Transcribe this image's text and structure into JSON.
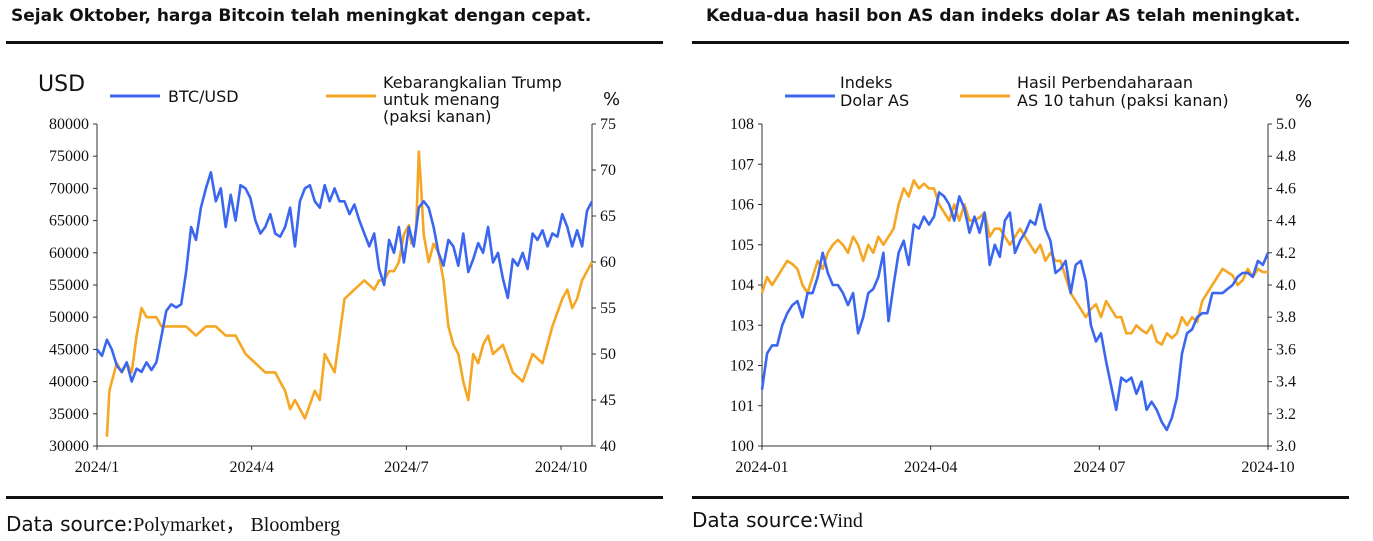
{
  "left": {
    "title": "Sejak Oktober, harga Bitcoin telah meningkat dengan cepat.",
    "source_label": "Data source:",
    "source_value": "Polymarket， Bloomberg"
  },
  "right": {
    "title": "Kedua-dua hasil bon AS dan indeks dolar AS telah meningkat.",
    "source_label": "Data source:",
    "source_value": "Wind"
  },
  "chart_data": [
    {
      "type": "line",
      "unit_left": "USD",
      "unit_right": "%",
      "ylim": [
        30000,
        80000
      ],
      "y2lim": [
        40,
        75
      ],
      "yticks": [
        "80000",
        "75000",
        "70000",
        "65000",
        "60000",
        "55000",
        "50000",
        "45000",
        "40000",
        "35000",
        "30000"
      ],
      "y2ticks": [
        "75",
        "70",
        "65",
        "60",
        "55",
        "50",
        "45",
        "40"
      ],
      "xticks": [
        "2024/1",
        "2024/4",
        "2024/7",
        "2024/10"
      ],
      "xtick_pos": [
        0,
        0.3125,
        0.625,
        0.9375
      ],
      "colors": {
        "btc": "#3a66f0",
        "trump": "#f5a623"
      },
      "series": [
        {
          "name": "BTC/USD",
          "axis": "left",
          "x": [
            0,
            0.01,
            0.02,
            0.03,
            0.04,
            0.05,
            0.06,
            0.07,
            0.08,
            0.09,
            0.1,
            0.11,
            0.12,
            0.13,
            0.14,
            0.15,
            0.16,
            0.17,
            0.18,
            0.19,
            0.2,
            0.21,
            0.22,
            0.23,
            0.24,
            0.25,
            0.26,
            0.27,
            0.28,
            0.29,
            0.3,
            0.31,
            0.32,
            0.33,
            0.34,
            0.35,
            0.36,
            0.37,
            0.38,
            0.39,
            0.4,
            0.41,
            0.42,
            0.43,
            0.44,
            0.45,
            0.46,
            0.47,
            0.48,
            0.49,
            0.5,
            0.51,
            0.52,
            0.53,
            0.54,
            0.55,
            0.56,
            0.57,
            0.58,
            0.59,
            0.6,
            0.61,
            0.62,
            0.63,
            0.64,
            0.65,
            0.66,
            0.67,
            0.68,
            0.69,
            0.7,
            0.71,
            0.72,
            0.73,
            0.74,
            0.75,
            0.76,
            0.77,
            0.78,
            0.79,
            0.8,
            0.81,
            0.82,
            0.83,
            0.84,
            0.85,
            0.86,
            0.87,
            0.88,
            0.89,
            0.9,
            0.91,
            0.92,
            0.93,
            0.94,
            0.95,
            0.96,
            0.97,
            0.98,
            0.99,
            1.0
          ],
          "values": [
            45000,
            44000,
            46500,
            45000,
            42500,
            41500,
            43000,
            40000,
            42000,
            41500,
            43000,
            41800,
            43000,
            47000,
            51000,
            52000,
            51500,
            52000,
            57000,
            64000,
            62000,
            67000,
            70000,
            72500,
            68000,
            70000,
            64000,
            69000,
            65000,
            70500,
            70000,
            68500,
            65000,
            63000,
            64000,
            66000,
            63000,
            62500,
            64000,
            67000,
            61000,
            68000,
            70000,
            70500,
            68000,
            67000,
            70500,
            68000,
            70000,
            68000,
            68000,
            66000,
            67500,
            65000,
            63000,
            61000,
            63000,
            57500,
            55000,
            62000,
            60000,
            64000,
            58500,
            64000,
            61000,
            67000,
            68000,
            67000,
            64000,
            60000,
            58000,
            62000,
            61000,
            58000,
            63000,
            57000,
            59000,
            61500,
            60000,
            64000,
            58500,
            60000,
            56000,
            53000,
            59000,
            58000,
            60000,
            57500,
            63000,
            62000,
            63500,
            61000,
            63000,
            62500,
            66000,
            64000,
            61000,
            63500,
            61000,
            66500,
            68000
          ],
          "data_min": 30000,
          "data_max": 80000
        },
        {
          "name": "Kebarangkalian Trump untuk menang (paksi kanan)",
          "axis": "right",
          "x": [
            0.02,
            0.025,
            0.03,
            0.04,
            0.05,
            0.06,
            0.07,
            0.08,
            0.09,
            0.1,
            0.12,
            0.13,
            0.14,
            0.16,
            0.18,
            0.2,
            0.22,
            0.24,
            0.26,
            0.28,
            0.3,
            0.32,
            0.34,
            0.36,
            0.37,
            0.38,
            0.39,
            0.4,
            0.42,
            0.44,
            0.45,
            0.46,
            0.48,
            0.5,
            0.52,
            0.54,
            0.56,
            0.57,
            0.58,
            0.59,
            0.6,
            0.61,
            0.62,
            0.63,
            0.635,
            0.64,
            0.645,
            0.65,
            0.655,
            0.66,
            0.67,
            0.68,
            0.69,
            0.7,
            0.71,
            0.72,
            0.73,
            0.74,
            0.75,
            0.76,
            0.77,
            0.78,
            0.79,
            0.8,
            0.82,
            0.84,
            0.86,
            0.88,
            0.9,
            0.92,
            0.94,
            0.95,
            0.96,
            0.97,
            0.98,
            0.99,
            1.0
          ],
          "values": [
            41,
            46,
            47,
            49,
            48,
            49,
            48,
            52,
            55,
            54,
            54,
            53,
            53,
            53,
            53,
            52,
            53,
            53,
            52,
            52,
            50,
            49,
            48,
            48,
            47,
            46,
            44,
            45,
            43,
            46,
            45,
            50,
            48,
            56,
            57,
            58,
            57,
            58,
            58,
            59,
            59,
            60,
            63,
            64,
            62,
            62,
            64,
            72,
            68,
            63,
            60,
            62,
            61,
            58,
            53,
            51,
            50,
            47,
            45,
            50,
            49,
            51,
            52,
            50,
            51,
            48,
            47,
            50,
            49,
            53,
            56,
            57,
            55,
            56,
            58,
            59,
            60
          ],
          "data_min": 40,
          "data_max": 75
        }
      ],
      "legend": [
        "BTC/USD",
        "Kebarangkalian Trump\nuntuk menang\n(paksi kanan)"
      ]
    },
    {
      "type": "line",
      "unit_right": "%",
      "ylim": [
        100,
        108
      ],
      "y2lim": [
        3.0,
        5.0
      ],
      "yticks": [
        "108",
        "107",
        "106",
        "105",
        "104",
        "103",
        "102",
        "101",
        "100"
      ],
      "y2ticks": [
        "5.0",
        "4.8",
        "4.6",
        "4.4",
        "4.2",
        "4.0",
        "3.8",
        "3.6",
        "3.4",
        "3.2",
        "3.0"
      ],
      "xticks": [
        "2024-01",
        "2024-04",
        "2024 07",
        "2024-10"
      ],
      "xtick_pos": [
        0,
        0.3333,
        0.6667,
        1.0
      ],
      "colors": {
        "dxy": "#3a66f0",
        "ust": "#f5a623"
      },
      "series": [
        {
          "name": "Indeks Dolar AS",
          "axis": "left",
          "x": [
            0,
            0.01,
            0.02,
            0.03,
            0.04,
            0.05,
            0.06,
            0.07,
            0.08,
            0.09,
            0.1,
            0.11,
            0.12,
            0.13,
            0.14,
            0.15,
            0.16,
            0.17,
            0.18,
            0.19,
            0.2,
            0.21,
            0.22,
            0.23,
            0.24,
            0.25,
            0.26,
            0.27,
            0.28,
            0.29,
            0.3,
            0.31,
            0.32,
            0.33,
            0.34,
            0.35,
            0.36,
            0.37,
            0.38,
            0.39,
            0.4,
            0.41,
            0.42,
            0.43,
            0.44,
            0.45,
            0.46,
            0.47,
            0.48,
            0.49,
            0.5,
            0.51,
            0.52,
            0.53,
            0.54,
            0.55,
            0.56,
            0.57,
            0.58,
            0.59,
            0.6,
            0.61,
            0.62,
            0.63,
            0.64,
            0.65,
            0.66,
            0.67,
            0.68,
            0.69,
            0.7,
            0.71,
            0.72,
            0.73,
            0.74,
            0.75,
            0.76,
            0.77,
            0.78,
            0.79,
            0.8,
            0.81,
            0.82,
            0.83,
            0.84,
            0.85,
            0.86,
            0.87,
            0.88,
            0.89,
            0.9,
            0.91,
            0.92,
            0.93,
            0.94,
            0.95,
            0.96,
            0.97,
            0.98,
            0.99,
            1.0
          ],
          "values": [
            101.4,
            102.3,
            102.5,
            102.5,
            103,
            103.3,
            103.5,
            103.6,
            103.2,
            103.8,
            103.8,
            104.2,
            104.8,
            104.3,
            104,
            104,
            103.8,
            103.5,
            103.8,
            102.8,
            103.2,
            103.8,
            103.9,
            104.2,
            104.8,
            103.1,
            104,
            104.8,
            105.1,
            104.5,
            105.5,
            105.4,
            105.7,
            105.5,
            105.7,
            106.3,
            106.2,
            106.0,
            105.6,
            106.2,
            105.9,
            105.3,
            105.7,
            105.3,
            105.8,
            104.5,
            105,
            104.7,
            105.6,
            105.8,
            104.8,
            105.1,
            105.3,
            105.6,
            105.5,
            106.0,
            105.4,
            105.1,
            104.3,
            104.4,
            104.6,
            103.8,
            104.5,
            104.6,
            104.1,
            103.0,
            102.6,
            102.8,
            102.1,
            101.5,
            100.9,
            101.7,
            101.6,
            101.7,
            101.3,
            101.6,
            100.9,
            101.1,
            100.9,
            100.6,
            100.4,
            100.7,
            101.2,
            102.3,
            102.8,
            102.9,
            103.2,
            103.3,
            103.3,
            103.8,
            103.8,
            103.8,
            103.9,
            104.0,
            104.2,
            104.3,
            104.3,
            104.2,
            104.6,
            104.5,
            104.8
          ],
          "data_min": 100,
          "data_max": 108
        },
        {
          "name": "Hasil Perbendaharaan AS 10 tahun (paksi kanan)",
          "axis": "right",
          "x": [
            0,
            0.01,
            0.02,
            0.03,
            0.04,
            0.05,
            0.06,
            0.07,
            0.08,
            0.09,
            0.1,
            0.11,
            0.12,
            0.13,
            0.14,
            0.15,
            0.16,
            0.17,
            0.18,
            0.19,
            0.2,
            0.21,
            0.22,
            0.23,
            0.24,
            0.25,
            0.26,
            0.27,
            0.28,
            0.29,
            0.3,
            0.31,
            0.32,
            0.33,
            0.34,
            0.35,
            0.36,
            0.37,
            0.38,
            0.39,
            0.4,
            0.41,
            0.42,
            0.43,
            0.44,
            0.45,
            0.46,
            0.47,
            0.48,
            0.49,
            0.5,
            0.51,
            0.52,
            0.53,
            0.54,
            0.55,
            0.56,
            0.57,
            0.58,
            0.59,
            0.6,
            0.61,
            0.62,
            0.63,
            0.64,
            0.65,
            0.66,
            0.67,
            0.68,
            0.69,
            0.7,
            0.71,
            0.72,
            0.73,
            0.74,
            0.75,
            0.76,
            0.77,
            0.78,
            0.79,
            0.8,
            0.81,
            0.82,
            0.83,
            0.84,
            0.85,
            0.86,
            0.87,
            0.88,
            0.89,
            0.9,
            0.91,
            0.92,
            0.93,
            0.94,
            0.95,
            0.96,
            0.97,
            0.98,
            0.99,
            1.0
          ],
          "values": [
            3.95,
            4.05,
            4.0,
            4.05,
            4.1,
            4.15,
            4.13,
            4.1,
            4.0,
            3.95,
            4.05,
            4.15,
            4.1,
            4.2,
            4.25,
            4.28,
            4.25,
            4.2,
            4.3,
            4.25,
            4.15,
            4.25,
            4.2,
            4.3,
            4.25,
            4.3,
            4.35,
            4.5,
            4.6,
            4.55,
            4.65,
            4.6,
            4.63,
            4.6,
            4.6,
            4.5,
            4.45,
            4.4,
            4.5,
            4.4,
            4.5,
            4.4,
            4.4,
            4.42,
            4.45,
            4.3,
            4.35,
            4.35,
            4.3,
            4.25,
            4.3,
            4.35,
            4.3,
            4.25,
            4.2,
            4.25,
            4.15,
            4.2,
            4.15,
            4.15,
            4.05,
            3.95,
            3.9,
            3.85,
            3.8,
            3.85,
            3.88,
            3.8,
            3.9,
            3.85,
            3.8,
            3.8,
            3.7,
            3.7,
            3.75,
            3.72,
            3.7,
            3.75,
            3.65,
            3.63,
            3.7,
            3.67,
            3.7,
            3.8,
            3.75,
            3.8,
            3.77,
            3.9,
            3.95,
            4.0,
            4.05,
            4.1,
            4.08,
            4.06,
            4.0,
            4.03,
            4.1,
            4.05,
            4.1,
            4.08,
            4.08
          ],
          "data_min": 3.0,
          "data_max": 5.0
        }
      ],
      "legend": [
        "Indeks\nDolar AS",
        "Hasil Perbendaharaan\nAS 10 tahun (paksi kanan)"
      ]
    }
  ]
}
